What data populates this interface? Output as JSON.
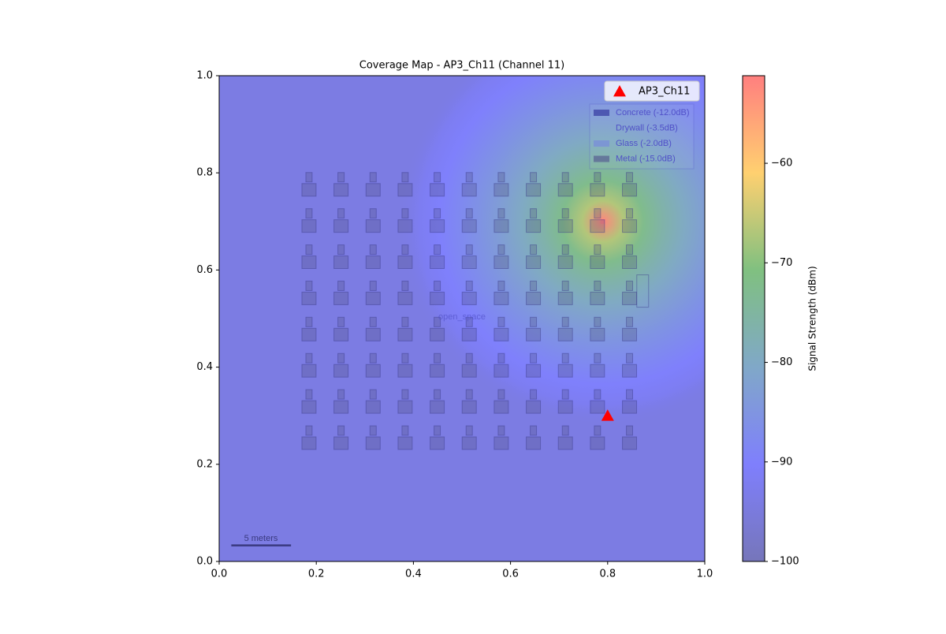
{
  "chart_data": {
    "type": "heatmap",
    "title": "Coverage Map - AP3_Ch11 (Channel 11)",
    "xlim": [
      0,
      1
    ],
    "ylim": [
      0,
      1
    ],
    "xticks": [
      {
        "value": 0,
        "label": "0.0"
      },
      0.2,
      0.4,
      0.6,
      0.8,
      {
        "value": 1,
        "label": "1.0"
      }
    ],
    "yticks": [
      {
        "value": 0,
        "label": "0.0"
      },
      0.2,
      0.4,
      0.6,
      0.8,
      {
        "value": 1,
        "label": "1.0"
      }
    ],
    "background_value": -94,
    "hotspot": {
      "x": 0.79,
      "y": 0.7,
      "peak": -52
    },
    "series": [
      {
        "name": "AP3_Ch11",
        "color": "#ff0000",
        "x": [
          0.8
        ],
        "values": [
          0.3
        ]
      }
    ],
    "legend": "upper right",
    "colorbar": {
      "label": "Signal Strength (dBm)",
      "clim": [
        -100,
        -51.2
      ],
      "ticks": [
        {
          "value": -100,
          "label": "−100"
        },
        {
          "value": -90,
          "label": "−90"
        },
        {
          "value": -80,
          "label": "−80"
        },
        {
          "value": -70,
          "label": "−70"
        },
        {
          "value": -60,
          "label": "−60"
        }
      ],
      "colors": [
        "#7676ba",
        "#7f7ffd",
        "#80a8c8",
        "#80c080",
        "#ffd070",
        "#ff7f7f"
      ]
    },
    "materials": [
      "Concrete (-12.0dB)",
      "Drywall (-3.5dB)",
      "Glass (-2.0dB)",
      "Metal (-15.0dB)"
    ],
    "zone_label": "open_space",
    "scale_label": "5 meters"
  }
}
